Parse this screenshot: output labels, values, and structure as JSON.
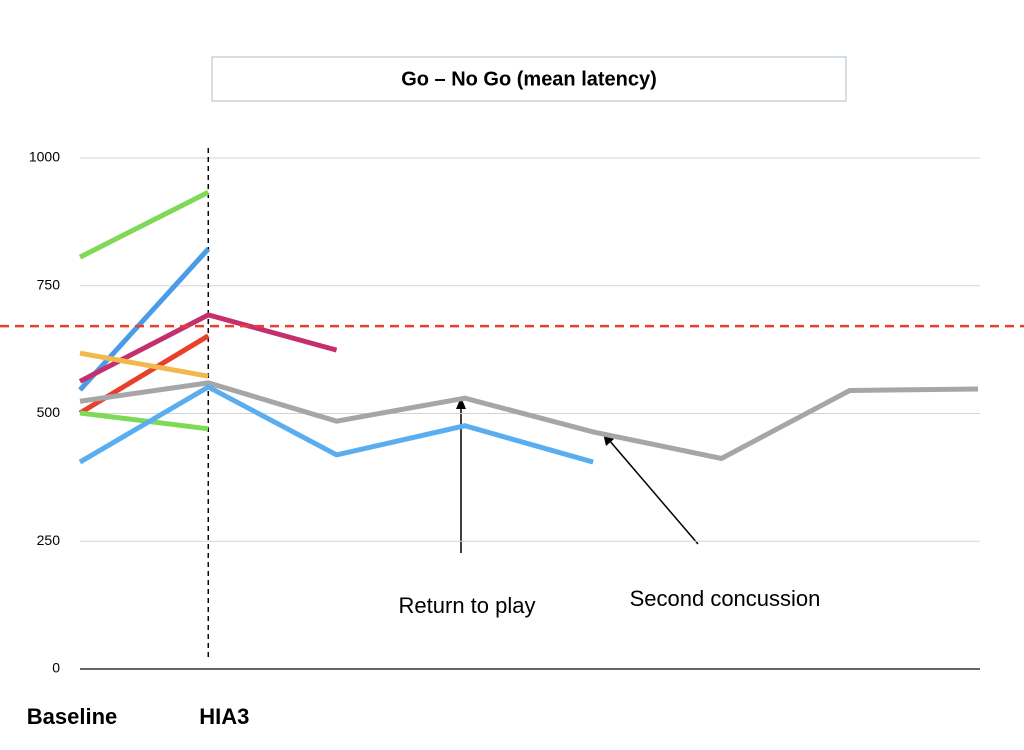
{
  "chart_data": {
    "type": "line",
    "title": "Go – No Go (mean latency)",
    "categories": [
      "Baseline",
      "HIA3",
      null,
      null,
      null,
      null,
      null,
      null
    ],
    "series": [
      {
        "color": "#7ed957",
        "values": [
          806,
          933,
          null,
          null,
          null,
          null,
          null,
          null
        ]
      },
      {
        "color": "#4a9be8",
        "values": [
          546,
          822,
          null,
          null,
          null,
          null,
          null,
          null
        ]
      },
      {
        "color": "#c4306e",
        "values": [
          563,
          693,
          624,
          null,
          null,
          null,
          null,
          null
        ]
      },
      {
        "color": "#e8402a",
        "values": [
          501,
          652,
          null,
          null,
          null,
          null,
          null,
          null
        ]
      },
      {
        "color": "#f2b84b",
        "values": [
          618,
          573,
          null,
          null,
          null,
          null,
          null,
          null
        ]
      },
      {
        "color": "#a6a6a6",
        "values": [
          524,
          560,
          485,
          530,
          464,
          412,
          545,
          548
        ]
      },
      {
        "color": "#7ed957",
        "values": [
          501,
          470,
          null,
          null,
          null,
          null,
          null,
          null
        ]
      },
      {
        "color": "#5aaef0",
        "values": [
          405,
          552,
          419,
          476,
          405,
          null,
          null,
          null
        ]
      }
    ],
    "reference_line": {
      "value": 671,
      "color": "#e8402a"
    },
    "annotations": [
      "Return to play",
      "Second concussion"
    ],
    "ylim": [
      0,
      1000
    ],
    "yticks": [
      0,
      250,
      500,
      750,
      1000
    ],
    "grid": true
  }
}
